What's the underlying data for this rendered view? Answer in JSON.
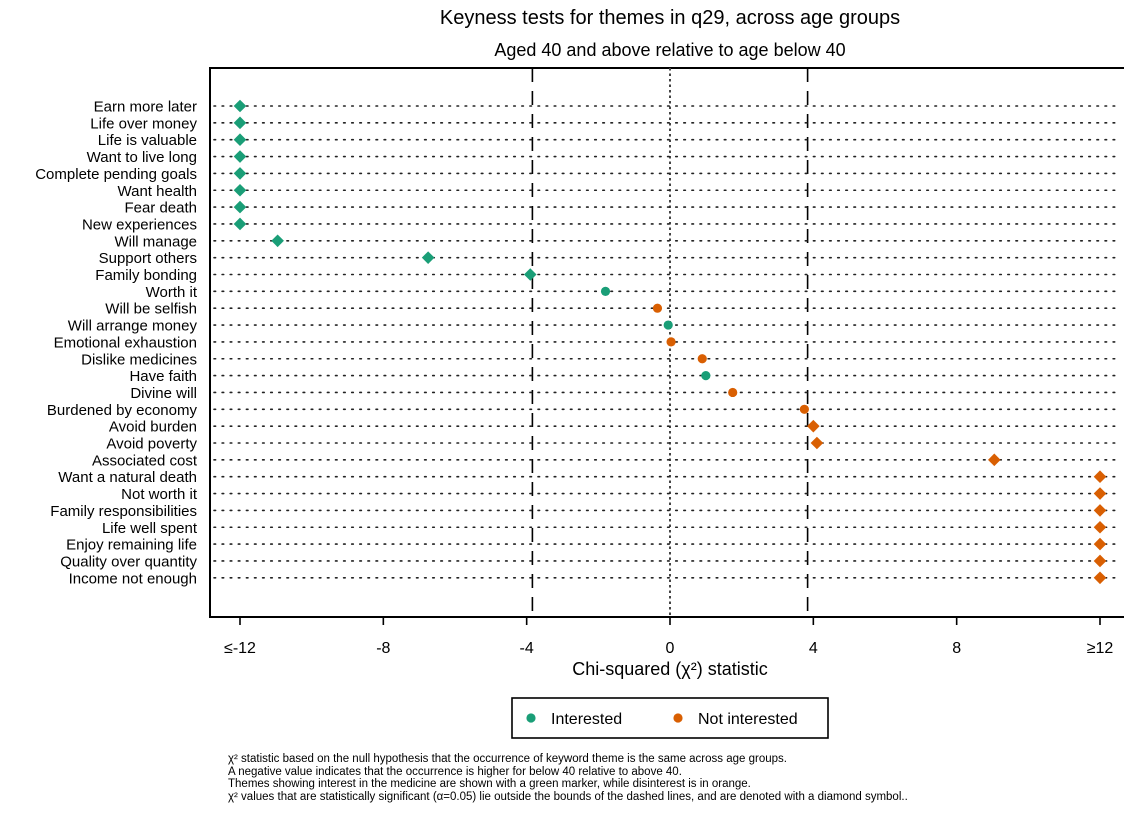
{
  "chart_data": {
    "type": "scatter",
    "title": "Keyness tests for themes in q29, across age groups",
    "subtitle": "Aged 40 and above relative to age below 40",
    "xlabel": "Chi-squared (χ²) statistic",
    "xlim": [
      -12,
      12
    ],
    "xticks": [
      {
        "value": -12,
        "label": "≤-12"
      },
      {
        "value": -8,
        "label": "-8"
      },
      {
        "value": -4,
        "label": "-4"
      },
      {
        "value": 0,
        "label": "0"
      },
      {
        "value": 4,
        "label": "4"
      },
      {
        "value": 8,
        "label": "8"
      },
      {
        "value": 12,
        "label": "≥12"
      }
    ],
    "significance_bounds": [
      -3.84,
      3.84
    ],
    "zero_line": 0,
    "colors": {
      "interested": "#1a9e77",
      "not_interested": "#d95f02"
    },
    "legend": {
      "position": "bottom-center",
      "entries": [
        {
          "key": "interested",
          "label": "Interested"
        },
        {
          "key": "not_interested",
          "label": "Not interested"
        }
      ]
    },
    "points": [
      {
        "label": "Earn more later",
        "x": -12,
        "group": "interested",
        "significant": true
      },
      {
        "label": "Life over money",
        "x": -12,
        "group": "interested",
        "significant": true
      },
      {
        "label": "Life is valuable",
        "x": -12,
        "group": "interested",
        "significant": true
      },
      {
        "label": "Want to live long",
        "x": -12,
        "group": "interested",
        "significant": true
      },
      {
        "label": "Complete pending goals",
        "x": -12,
        "group": "interested",
        "significant": true
      },
      {
        "label": "Want health",
        "x": -12,
        "group": "interested",
        "significant": true
      },
      {
        "label": "Fear death",
        "x": -12,
        "group": "interested",
        "significant": true
      },
      {
        "label": "New experiences",
        "x": -12,
        "group": "interested",
        "significant": true
      },
      {
        "label": "Will manage",
        "x": -10.95,
        "group": "interested",
        "significant": true
      },
      {
        "label": "Support others",
        "x": -6.75,
        "group": "interested",
        "significant": true
      },
      {
        "label": "Family bonding",
        "x": -3.9,
        "group": "interested",
        "significant": true
      },
      {
        "label": "Worth it",
        "x": -1.8,
        "group": "interested",
        "significant": false
      },
      {
        "label": "Will be selfish",
        "x": -0.35,
        "group": "not_interested",
        "significant": false
      },
      {
        "label": "Will arrange money",
        "x": -0.05,
        "group": "interested",
        "significant": false
      },
      {
        "label": "Emotional exhaustion",
        "x": 0.03,
        "group": "not_interested",
        "significant": false
      },
      {
        "label": "Dislike medicines",
        "x": 0.9,
        "group": "not_interested",
        "significant": false
      },
      {
        "label": "Have faith",
        "x": 1.0,
        "group": "interested",
        "significant": false
      },
      {
        "label": "Divine will",
        "x": 1.75,
        "group": "not_interested",
        "significant": false
      },
      {
        "label": "Burdened by economy",
        "x": 3.75,
        "group": "not_interested",
        "significant": false
      },
      {
        "label": "Avoid burden",
        "x": 4.0,
        "group": "not_interested",
        "significant": true
      },
      {
        "label": "Avoid poverty",
        "x": 4.1,
        "group": "not_interested",
        "significant": true
      },
      {
        "label": "Associated cost",
        "x": 9.05,
        "group": "not_interested",
        "significant": true
      },
      {
        "label": "Want a natural death",
        "x": 12,
        "group": "not_interested",
        "significant": true
      },
      {
        "label": "Not worth it",
        "x": 12,
        "group": "not_interested",
        "significant": true
      },
      {
        "label": "Family responsibilities",
        "x": 12,
        "group": "not_interested",
        "significant": true
      },
      {
        "label": "Life well spent",
        "x": 12,
        "group": "not_interested",
        "significant": true
      },
      {
        "label": "Enjoy remaining life",
        "x": 12,
        "group": "not_interested",
        "significant": true
      },
      {
        "label": "Quality over quantity",
        "x": 12,
        "group": "not_interested",
        "significant": true
      },
      {
        "label": "Income not enough",
        "x": 12,
        "group": "not_interested",
        "significant": true
      }
    ]
  },
  "notes": [
    "χ² statistic based on the null hypothesis that the occurrence of keyword theme is the same across age groups.",
    "A negative value indicates that the occurrence is higher for below 40 relative to above 40.",
    "Themes showing interest in the medicine are shown with a green marker, while disinterest is in orange.",
    "χ² values that are statistically significant (α=0.05) lie outside the bounds of the dashed lines, and are denoted with a diamond symbol.."
  ]
}
